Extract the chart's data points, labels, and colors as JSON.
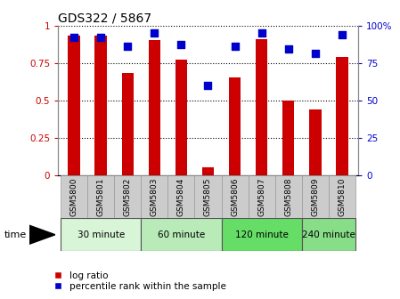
{
  "title": "GDS322 / 5867",
  "samples": [
    "GSM5800",
    "GSM5801",
    "GSM5802",
    "GSM5803",
    "GSM5804",
    "GSM5805",
    "GSM5806",
    "GSM5807",
    "GSM5808",
    "GSM5809",
    "GSM5810"
  ],
  "log_ratio": [
    0.93,
    0.93,
    0.68,
    0.9,
    0.77,
    0.05,
    0.65,
    0.91,
    0.5,
    0.44,
    0.79
  ],
  "percentile": [
    92,
    92,
    86,
    95,
    87,
    60,
    86,
    95,
    84,
    81,
    94
  ],
  "time_groups": [
    {
      "label": "30 minute",
      "start": 0,
      "end": 3,
      "color": "#d8f5d8"
    },
    {
      "label": "60 minute",
      "start": 3,
      "end": 6,
      "color": "#b8ebb8"
    },
    {
      "label": "120 minute",
      "start": 6,
      "end": 9,
      "color": "#66dd66"
    },
    {
      "label": "240 minute",
      "start": 9,
      "end": 11,
      "color": "#88dd88"
    }
  ],
  "bar_color": "#cc0000",
  "dot_color": "#0000cc",
  "tick_color_left": "#cc0000",
  "tick_color_right": "#0000cc",
  "ylim_left": [
    0,
    1
  ],
  "ylim_right": [
    0,
    100
  ],
  "yticks_left": [
    0,
    0.25,
    0.5,
    0.75,
    1
  ],
  "ytick_labels_left": [
    "0",
    "0.25",
    "0.5",
    "0.75",
    "1"
  ],
  "yticks_right": [
    0,
    25,
    50,
    75,
    100
  ],
  "ytick_labels_right": [
    "0",
    "25",
    "50",
    "75",
    "100%"
  ],
  "bar_width": 0.45,
  "dot_size": 28,
  "legend_log_ratio": "log ratio",
  "legend_percentile": "percentile rank within the sample",
  "background_color": "#ffffff",
  "xlabel_bg_color": "#cccccc",
  "border_color": "#999999"
}
